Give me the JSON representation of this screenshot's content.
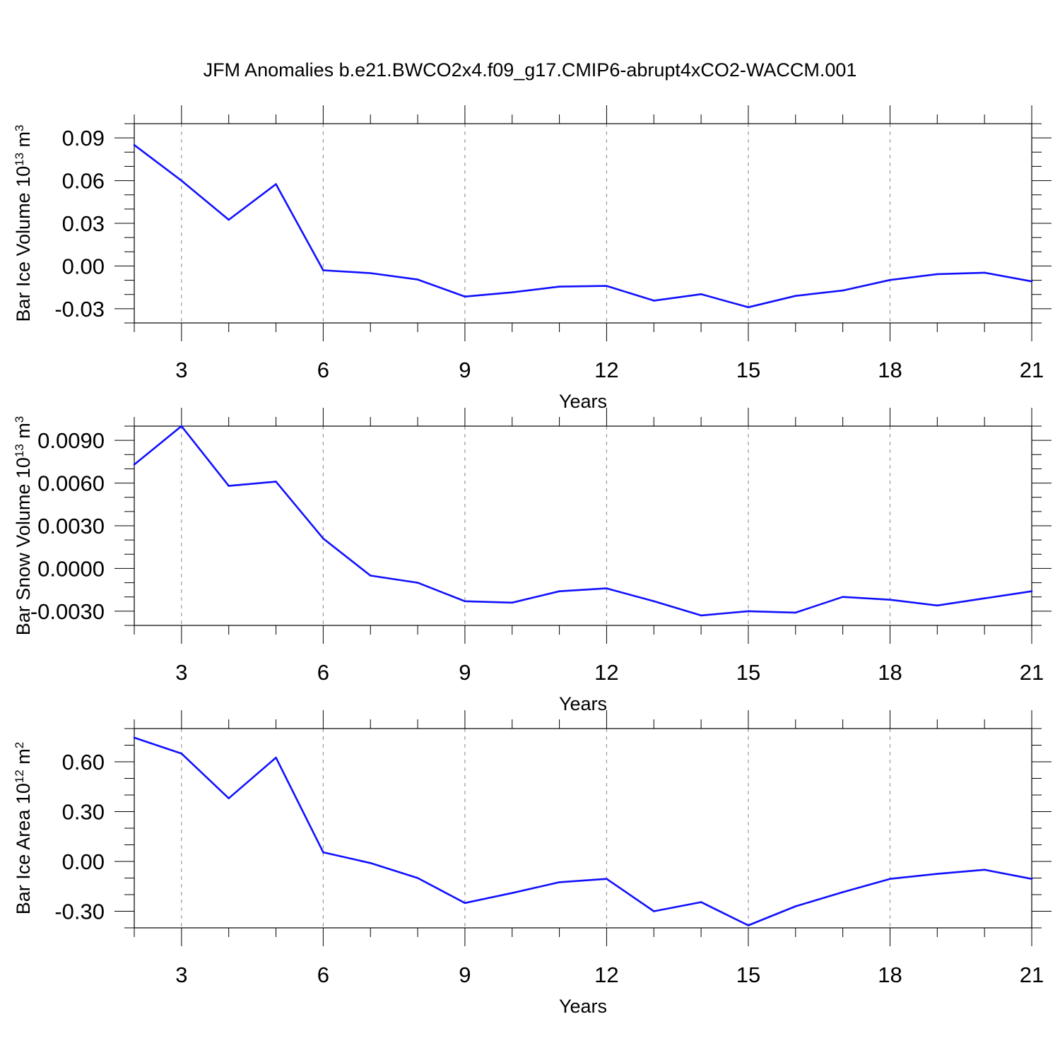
{
  "figure": {
    "title": "JFM Anomalies b.e21.BWCO2x4.f09_g17.CMIP6-abrupt4xCO2-WACCM.001"
  },
  "colors": {
    "line": "#1010ff",
    "axis": "#000000",
    "grid": "#999999"
  },
  "chart_data": [
    {
      "type": "line",
      "xlabel": "Years",
      "ylabel": "Bar Ice Volume 10",
      "ylabel_exp": "13",
      "ylabel_unit": " m",
      "ylabel_unit_exp": "3",
      "xlim": [
        2,
        21
      ],
      "ylim": [
        -0.04,
        0.1
      ],
      "xticks": [
        3,
        6,
        9,
        12,
        15,
        18,
        21
      ],
      "xtick_labels": [
        "3",
        "6",
        "9",
        "12",
        "15",
        "18",
        "21"
      ],
      "yticks": [
        0.09,
        0.06,
        0.03,
        0.0,
        -0.03
      ],
      "ytick_labels": [
        "0.09",
        "0.06",
        "0.03",
        "0.00",
        "-0.03"
      ],
      "grid": "vertical dashed at major x ticks",
      "x": [
        2,
        3,
        4,
        5,
        6,
        7,
        8,
        9,
        10,
        11,
        12,
        13,
        14,
        15,
        16,
        17,
        18,
        19,
        20,
        21
      ],
      "values": [
        0.085,
        0.06,
        0.0325,
        0.0575,
        -0.003,
        -0.005,
        -0.0095,
        -0.0215,
        -0.0185,
        -0.0145,
        -0.014,
        -0.0243,
        -0.0198,
        -0.029,
        -0.021,
        -0.0172,
        -0.0098,
        -0.0057,
        -0.0047,
        -0.0108
      ]
    },
    {
      "type": "line",
      "xlabel": "Years",
      "ylabel": "Bar Snow Volume 10",
      "ylabel_exp": "13",
      "ylabel_unit": " m",
      "ylabel_unit_exp": "3",
      "xlim": [
        2,
        21
      ],
      "ylim": [
        -0.004,
        0.01
      ],
      "xticks": [
        3,
        6,
        9,
        12,
        15,
        18,
        21
      ],
      "xtick_labels": [
        "3",
        "6",
        "9",
        "12",
        "15",
        "18",
        "21"
      ],
      "yticks": [
        0.009,
        0.006,
        0.003,
        0.0,
        -0.003
      ],
      "ytick_labels": [
        "0.0090",
        "0.0060",
        "0.0030",
        "0.0000",
        "-0.0030"
      ],
      "grid": "vertical dashed at major x ticks",
      "x": [
        2,
        3,
        4,
        5,
        6,
        7,
        8,
        9,
        10,
        11,
        12,
        13,
        14,
        15,
        16,
        17,
        18,
        19,
        20,
        21
      ],
      "values": [
        0.0073,
        0.01,
        0.0058,
        0.0061,
        0.0021,
        -0.0005,
        -0.001,
        -0.0023,
        -0.0024,
        -0.0016,
        -0.0014,
        -0.0023,
        -0.0033,
        -0.003,
        -0.0031,
        -0.002,
        -0.0022,
        -0.0026,
        -0.0021,
        -0.0016
      ]
    },
    {
      "type": "line",
      "xlabel": "Years",
      "ylabel": "Bar Ice Area 10",
      "ylabel_exp": "12",
      "ylabel_unit": " m",
      "ylabel_unit_exp": "2",
      "xlim": [
        2,
        21
      ],
      "ylim": [
        -0.4,
        0.8
      ],
      "xticks": [
        3,
        6,
        9,
        12,
        15,
        18,
        21
      ],
      "xtick_labels": [
        "3",
        "6",
        "9",
        "12",
        "15",
        "18",
        "21"
      ],
      "yticks": [
        0.6,
        0.3,
        0.0,
        -0.3
      ],
      "ytick_labels": [
        "0.60",
        "0.30",
        "0.00",
        "-0.30"
      ],
      "grid": "vertical dashed at major x ticks",
      "x": [
        2,
        3,
        4,
        5,
        6,
        7,
        8,
        9,
        10,
        11,
        12,
        13,
        14,
        15,
        16,
        17,
        18,
        19,
        20,
        21
      ],
      "values": [
        0.745,
        0.65,
        0.38,
        0.625,
        0.055,
        -0.01,
        -0.1,
        -0.25,
        -0.19,
        -0.125,
        -0.105,
        -0.3,
        -0.245,
        -0.385,
        -0.27,
        -0.185,
        -0.105,
        -0.075,
        -0.05,
        -0.105
      ]
    }
  ]
}
